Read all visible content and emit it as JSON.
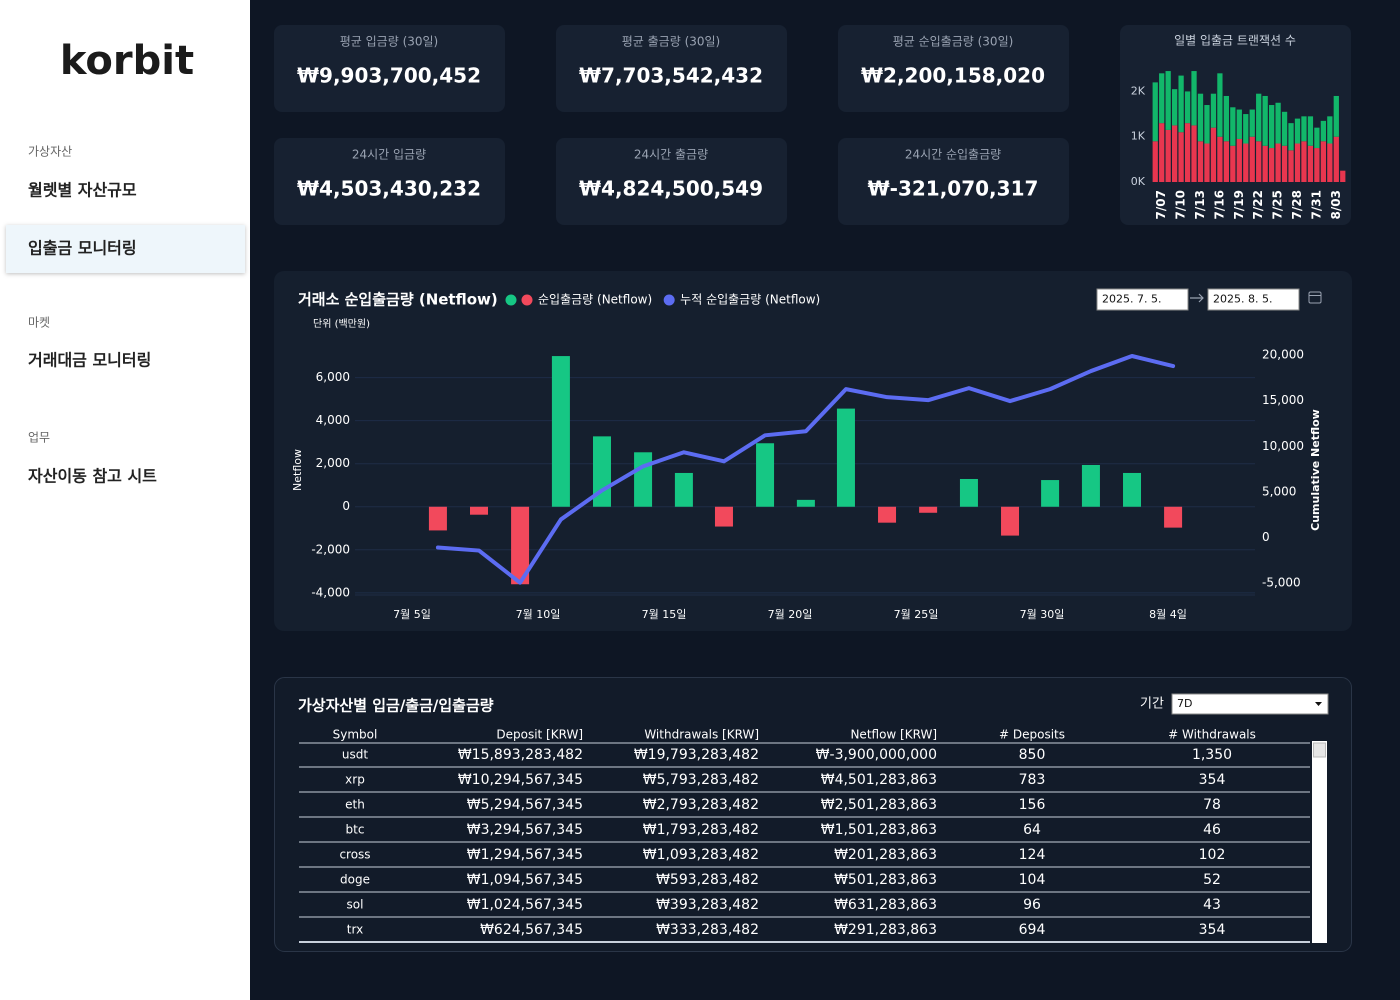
{
  "sidebar": {
    "logo": "korbit",
    "sections": [
      {
        "heading": "가상자산",
        "items": [
          {
            "label": "월렛별 자산규모"
          },
          {
            "label": "입출금 모니터링",
            "active": true
          }
        ]
      },
      {
        "heading": "마켓",
        "items": [
          {
            "label": "거래대금 모니터링"
          }
        ]
      },
      {
        "heading": "업무",
        "items": [
          {
            "label": "자산이동 참고 시트"
          }
        ]
      }
    ]
  },
  "kpis": [
    {
      "label": "평균 입금량 (30일)",
      "value": "₩9,903,700,452"
    },
    {
      "label": "평균 출금량 (30일)",
      "value": "₩7,703,542,432"
    },
    {
      "label": "평균 순입출금량 (30일)",
      "value": "₩2,200,158,020"
    },
    {
      "label": "24시간 입금량",
      "value": "₩4,503,430,232"
    },
    {
      "label": "24시간 출금량",
      "value": "₩4,824,500,549"
    },
    {
      "label": "24시간 순입출금량",
      "value": "₩-321,070,317"
    }
  ],
  "chart_data": [
    {
      "type": "stacked_bar",
      "title": "일별 입출금 트랜잭션 수",
      "categories": [
        null,
        "7/07",
        null,
        null,
        "7/10",
        null,
        null,
        "7/13",
        null,
        null,
        "7/16",
        null,
        null,
        "7/19",
        null,
        null,
        "7/22",
        null,
        null,
        "7/25",
        null,
        null,
        "7/28",
        null,
        null,
        "7/31",
        null,
        null,
        "8/03",
        null
      ],
      "ylim": [
        0,
        2650
      ],
      "yticks": [
        {
          "value": 0,
          "label": "0K"
        },
        {
          "value": 1000,
          "label": "1K"
        },
        {
          "value": 2000,
          "label": "2K"
        }
      ],
      "series": [
        {
          "color": "#e8364f",
          "values": [
            900,
            1300,
            1150,
            1250,
            1100,
            1300,
            1250,
            900,
            850,
            1200,
            1000,
            900,
            800,
            950,
            850,
            1000,
            900,
            800,
            750,
            850,
            800,
            700,
            850,
            900,
            800,
            750,
            900,
            850,
            1000,
            250
          ]
        },
        {
          "color": "#12b76a",
          "values": [
            1300,
            1100,
            1300,
            800,
            1250,
            700,
            1200,
            1050,
            850,
            750,
            1400,
            1000,
            850,
            650,
            650,
            600,
            1050,
            1100,
            950,
            900,
            750,
            600,
            550,
            550,
            650,
            450,
            450,
            600,
            900,
            0
          ]
        }
      ]
    },
    {
      "type": "bar_line",
      "title": "거래소 순입출금량 (Netflow)",
      "subtitle": "단위 (백만원)",
      "ylabel": "Netflow",
      "y2label": "Cumulative Netflow",
      "x": [
        6.03,
        7.66,
        9.29,
        10.91,
        12.54,
        14.17,
        15.79,
        17.38,
        19.01,
        20.63,
        22.22,
        23.85,
        25.48,
        27.1,
        28.73,
        30.32,
        31.94,
        33.57,
        35.2
      ],
      "xlim": [
        2.74,
        38.45
      ],
      "xticks": [
        {
          "value": 5,
          "label": "7월 5일"
        },
        {
          "value": 10,
          "label": "7월 10일"
        },
        {
          "value": 15,
          "label": "7월 15일"
        },
        {
          "value": 20,
          "label": "7월 20일"
        },
        {
          "value": 25,
          "label": "7월 25일"
        },
        {
          "value": 30,
          "label": "7월 30일"
        },
        {
          "value": 35,
          "label": "8월 4일"
        }
      ],
      "ylim": [
        -4100,
        7050
      ],
      "yticks": [
        {
          "value": -4000,
          "label": "-4,000"
        },
        {
          "value": -2000,
          "label": "-2,000"
        },
        0,
        {
          "value": 2000,
          "label": "2,000"
        },
        {
          "value": 4000,
          "label": "4,000"
        },
        {
          "value": 6000,
          "label": "6,000"
        }
      ],
      "y2lim": [
        -6300,
        20000
      ],
      "y2ticks": [
        {
          "value": -5000,
          "label": "-5,000"
        },
        0,
        {
          "value": 5000,
          "label": "5,000"
        },
        {
          "value": 10000,
          "label": "10,000"
        },
        {
          "value": 15000,
          "label": "15,000"
        },
        {
          "value": 20000,
          "label": "20,000"
        }
      ],
      "grid": true,
      "series": [
        {
          "name": "순입출금량 (Netflow)",
          "type": "bar",
          "color": "#16c784",
          "negative_color": "#f2495c",
          "values": [
            -1100,
            -370,
            -3600,
            7000,
            3270,
            2530,
            1570,
            -920,
            2950,
            320,
            4560,
            -740,
            -280,
            1290,
            -1340,
            1240,
            1940,
            1570,
            -970
          ]
        },
        {
          "name": "누적 순입출금량 (Netflow)",
          "type": "line",
          "axis": "y2",
          "color": "#5c6cf2",
          "values": [
            -1100,
            -1430,
            -4950,
            1980,
            5160,
            7800,
            9340,
            8350,
            11200,
            11650,
            16260,
            15380,
            15050,
            16370,
            14950,
            16260,
            18240,
            19890,
            18790
          ]
        }
      ]
    }
  ],
  "date_range": {
    "start": "2025. 7. 5.",
    "end": "2025. 8. 5."
  },
  "table": {
    "title": "가상자산별 입금/출금/입출금량",
    "period_label": "기간",
    "period": "7D",
    "columns": [
      "Symbol",
      "Deposit [KRW]",
      "Withdrawals [KRW]",
      "Netflow [KRW]",
      "# Deposits",
      "# Withdrawals"
    ],
    "rows": [
      [
        "usdt",
        "₩15,893,283,482",
        "₩19,793,283,482",
        "₩-3,900,000,000",
        "850",
        "1,350"
      ],
      [
        "xrp",
        "₩10,294,567,345",
        "₩5,793,283,482",
        "₩4,501,283,863",
        "783",
        "354"
      ],
      [
        "eth",
        "₩5,294,567,345",
        "₩2,793,283,482",
        "₩2,501,283,863",
        "156",
        "78"
      ],
      [
        "btc",
        "₩3,294,567,345",
        "₩1,793,283,482",
        "₩1,501,283,863",
        "64",
        "46"
      ],
      [
        "cross",
        "₩1,294,567,345",
        "₩1,093,283,482",
        "₩201,283,863",
        "124",
        "102"
      ],
      [
        "doge",
        "₩1,094,567,345",
        "₩593,283,482",
        "₩501,283,863",
        "104",
        "52"
      ],
      [
        "sol",
        "₩1,024,567,345",
        "₩393,283,482",
        "₩631,283,863",
        "96",
        "43"
      ],
      [
        "trx",
        "₩624,567,345",
        "₩333,283,482",
        "₩291,283,863",
        "694",
        "354"
      ]
    ]
  }
}
